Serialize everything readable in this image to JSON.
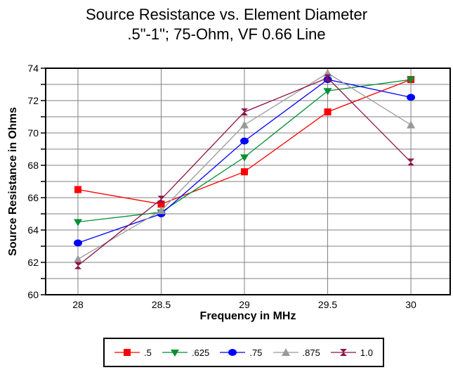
{
  "title": {
    "line1": "Source Resistance vs. Element Diameter",
    "line2": ".5\"-1\"; 75-Ohm, VF 0.66 Line"
  },
  "chart_data": {
    "type": "line",
    "title": "Source Resistance vs. Element Diameter .5\"-1\"; 75-Ohm, VF 0.66 Line",
    "xlabel": "Frequency in MHz",
    "ylabel": "Source Resistance in Ohms",
    "x": [
      28,
      28.5,
      29,
      29.5,
      30
    ],
    "series": [
      {
        "name": ".5",
        "marker": "square",
        "color": "#ff0000",
        "values": [
          66.5,
          65.6,
          67.6,
          71.3,
          73.3
        ]
      },
      {
        "name": ".625",
        "marker": "triangle-down",
        "color": "#008f33",
        "values": [
          64.5,
          65.1,
          68.5,
          72.6,
          73.3
        ]
      },
      {
        "name": ".75",
        "marker": "circle",
        "color": "#0000ff",
        "values": [
          63.2,
          65.0,
          69.5,
          73.3,
          72.2
        ]
      },
      {
        "name": ".875",
        "marker": "triangle-up",
        "color": "#9a9a9a",
        "values": [
          62.2,
          65.2,
          70.5,
          73.7,
          70.5
        ]
      },
      {
        "name": "1.0",
        "marker": "bowtie",
        "color": "#8e1148",
        "values": [
          61.8,
          65.9,
          71.3,
          73.4,
          68.2
        ]
      }
    ],
    "xlim": [
      27.806,
      30.236
    ],
    "ylim": [
      60,
      74
    ],
    "xticks": [
      28,
      28.5,
      29,
      29.5,
      30
    ],
    "xtick_labels": [
      "28",
      "28.5",
      "29",
      "29.5",
      "30"
    ],
    "ytick_label_values": [
      60,
      62,
      64,
      66,
      68,
      70,
      72,
      74
    ],
    "ygrid_step": 1,
    "grid": true,
    "grid_color": "#808080",
    "axis_color": "#000000",
    "legend_position": "bottom"
  }
}
